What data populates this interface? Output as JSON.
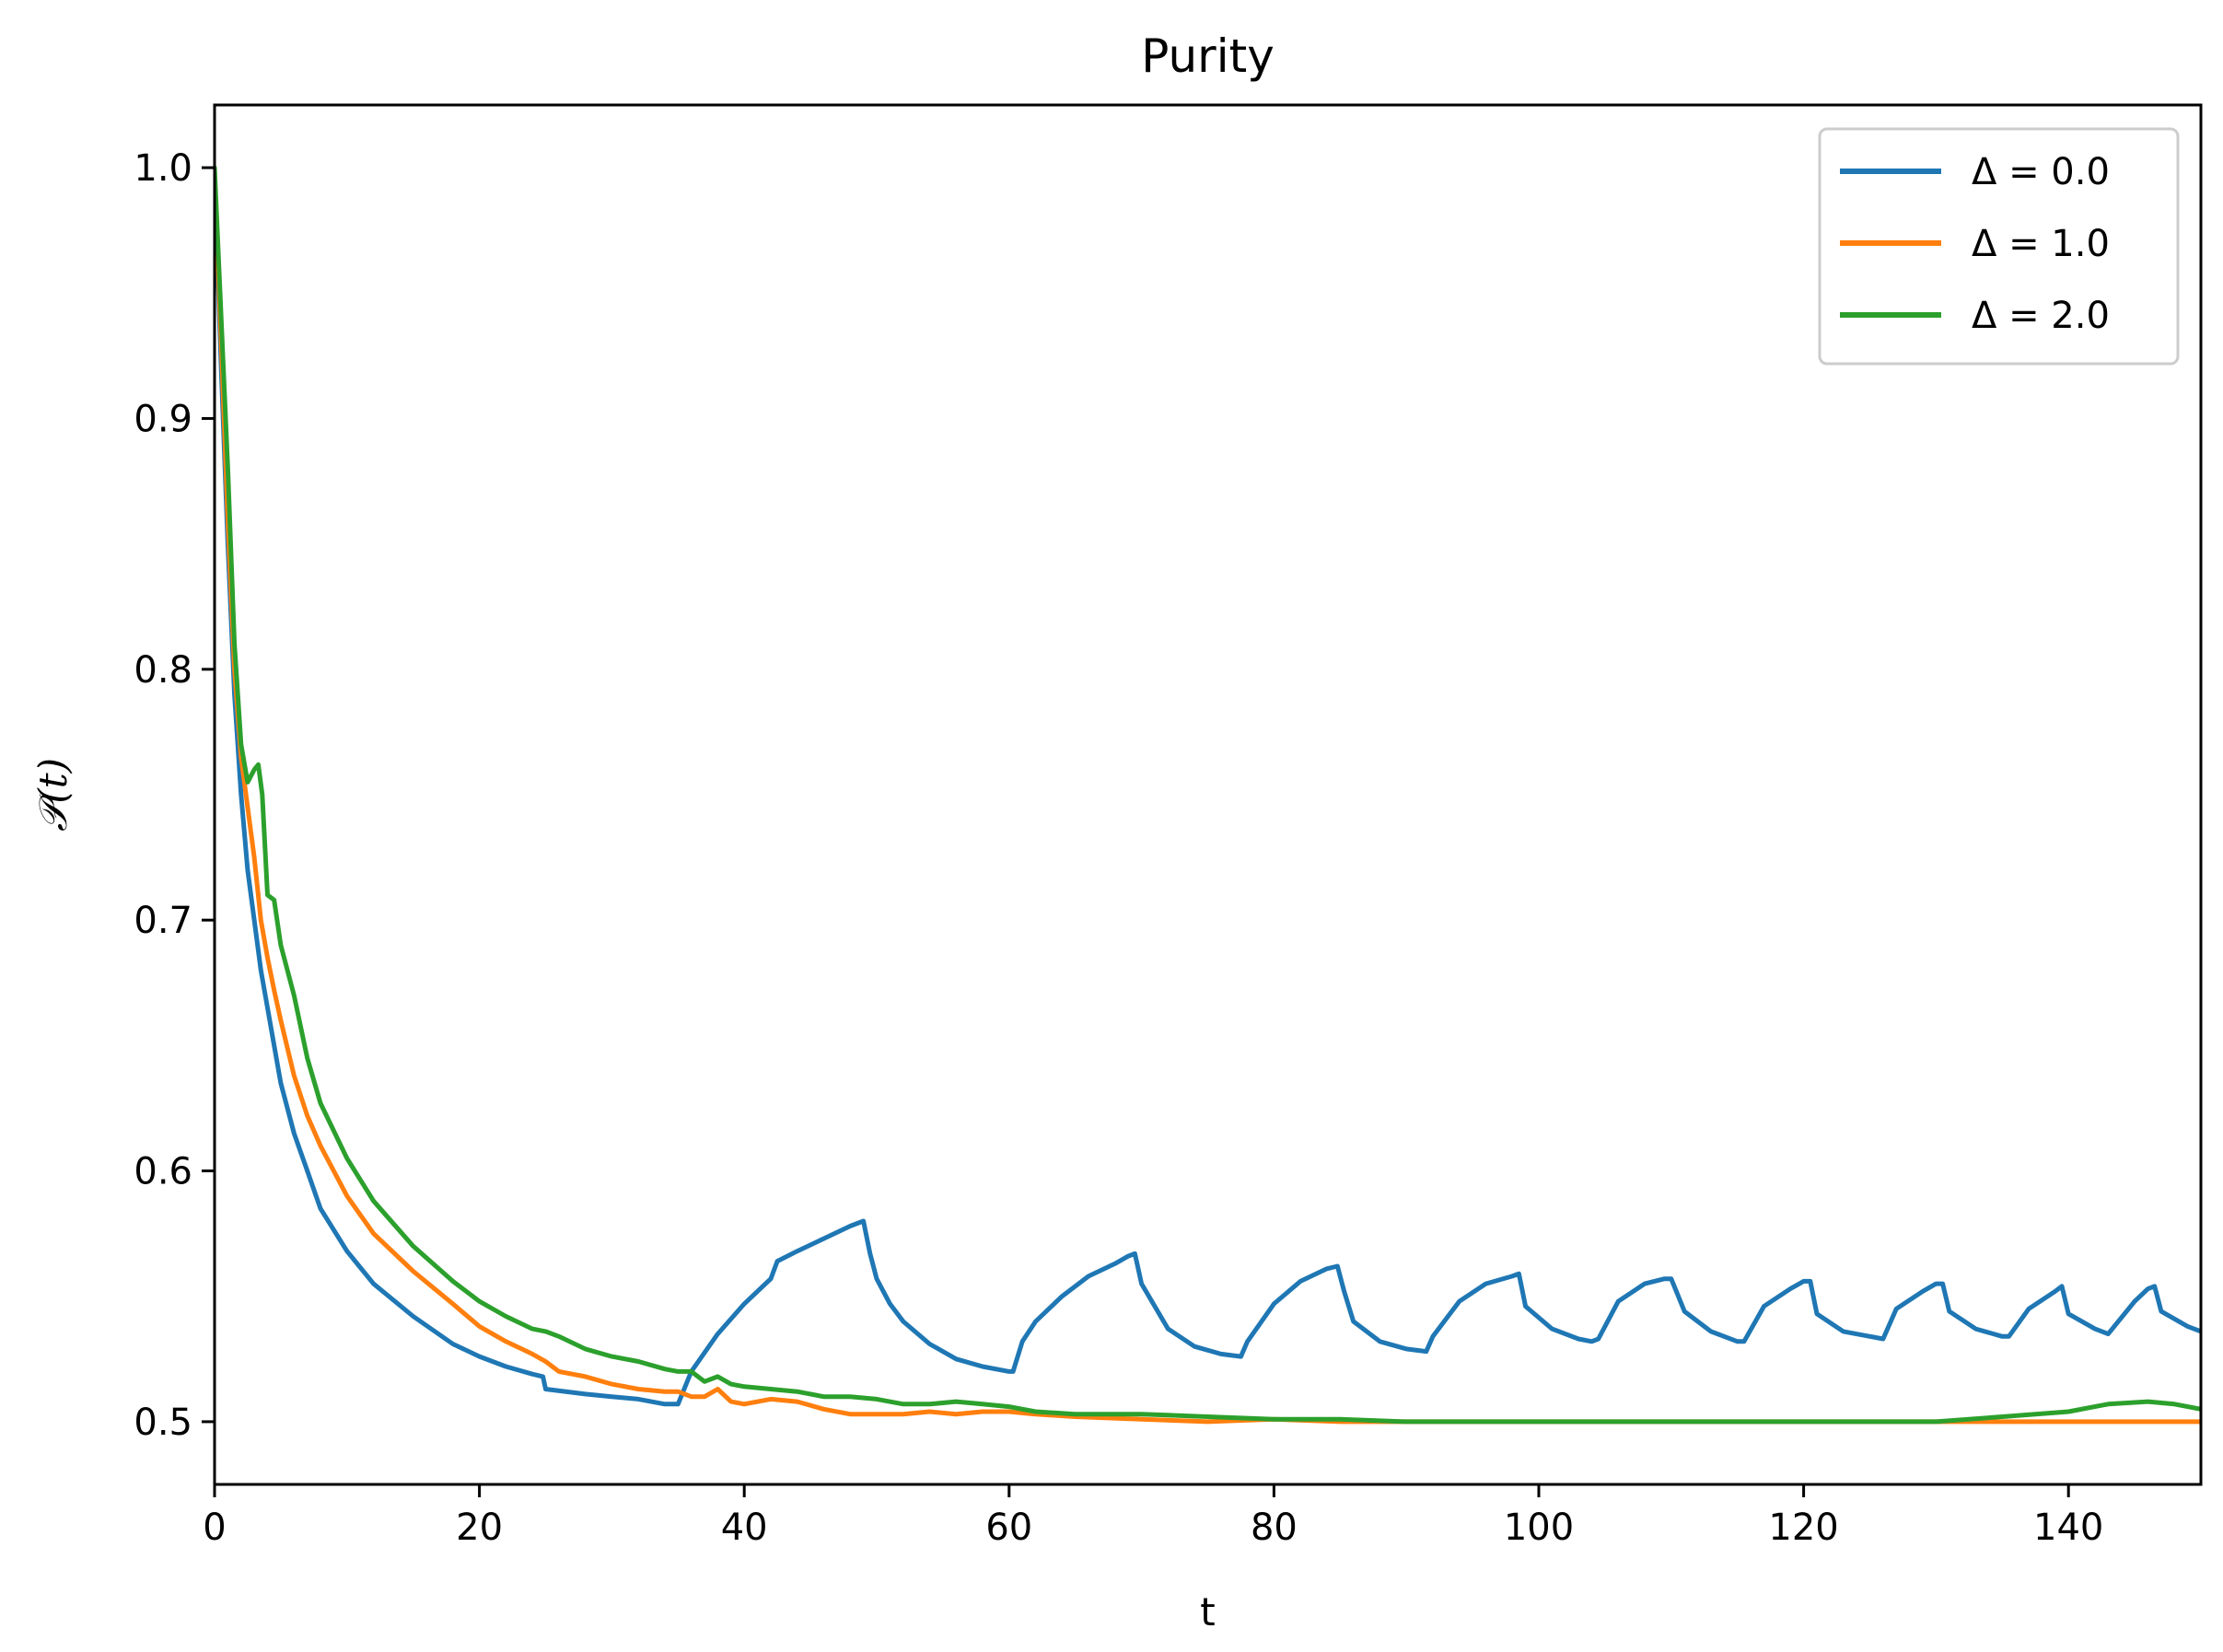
{
  "chart_data": {
    "type": "line",
    "title": "Purity",
    "xlabel": "t",
    "ylabel": "𝒫(t)",
    "xlim": [
      0,
      150
    ],
    "ylim": [
      0.475,
      1.025
    ],
    "xticks": [
      0,
      20,
      40,
      60,
      80,
      100,
      120,
      140
    ],
    "xtick_labels": [
      "0",
      "20",
      "40",
      "60",
      "80",
      "100",
      "120",
      "140"
    ],
    "yticks": [
      0.5,
      0.6,
      0.7,
      0.8,
      0.9,
      1.0
    ],
    "ytick_labels": [
      "0.5",
      "0.6",
      "0.7",
      "0.8",
      "0.9",
      "1.0"
    ],
    "grid": false,
    "legend_position": "top-right",
    "series": [
      {
        "name": "Δ = 0.0",
        "color": "#1f77b4",
        "x": [
          0,
          0.5,
          1,
          1.5,
          2,
          2.5,
          3,
          3.5,
          4,
          4.5,
          5,
          6,
          7,
          8,
          10,
          12,
          15,
          18,
          20,
          22,
          24,
          24.8,
          25,
          28,
          30,
          32,
          34,
          35,
          36,
          38,
          40,
          42,
          42.5,
          44,
          46,
          48,
          49,
          49.5,
          50,
          51,
          52,
          54,
          56,
          58,
          60,
          60.3,
          61,
          62,
          64,
          66,
          68,
          69,
          69.5,
          70,
          72,
          74,
          76,
          77.5,
          78,
          80,
          82,
          84,
          84.8,
          85.3,
          86,
          88,
          90,
          91.5,
          92,
          94,
          96,
          98,
          98.5,
          99,
          101,
          103,
          104,
          104.5,
          106,
          108,
          109.5,
          110,
          111,
          113,
          115,
          115.5,
          117,
          119,
          120,
          120.5,
          121,
          123,
          125,
          126,
          127,
          129,
          130,
          130.5,
          131,
          133,
          135,
          135.5,
          137,
          139,
          139.5,
          140,
          142,
          143,
          145,
          146,
          146.5,
          147,
          149,
          150
        ],
        "y": [
          0.995,
          0.92,
          0.85,
          0.79,
          0.75,
          0.72,
          0.7,
          0.68,
          0.665,
          0.65,
          0.635,
          0.615,
          0.6,
          0.585,
          0.568,
          0.555,
          0.542,
          0.531,
          0.526,
          0.522,
          0.519,
          0.518,
          0.513,
          0.511,
          0.51,
          0.509,
          0.507,
          0.507,
          0.52,
          0.535,
          0.547,
          0.557,
          0.564,
          0.568,
          0.573,
          0.578,
          0.58,
          0.567,
          0.557,
          0.547,
          0.54,
          0.531,
          0.525,
          0.522,
          0.52,
          0.52,
          0.532,
          0.54,
          0.55,
          0.558,
          0.563,
          0.566,
          0.567,
          0.555,
          0.537,
          0.53,
          0.527,
          0.526,
          0.532,
          0.547,
          0.556,
          0.561,
          0.562,
          0.552,
          0.54,
          0.532,
          0.529,
          0.528,
          0.534,
          0.548,
          0.555,
          0.558,
          0.559,
          0.546,
          0.537,
          0.533,
          0.532,
          0.533,
          0.548,
          0.555,
          0.557,
          0.557,
          0.544,
          0.536,
          0.532,
          0.532,
          0.546,
          0.553,
          0.556,
          0.556,
          0.543,
          0.536,
          0.534,
          0.533,
          0.545,
          0.552,
          0.555,
          0.555,
          0.544,
          0.537,
          0.534,
          0.534,
          0.545,
          0.552,
          0.554,
          0.543,
          0.537,
          0.535,
          0.548,
          0.553,
          0.554,
          0.544,
          0.538,
          0.536
        ]
      },
      {
        "name": "Δ = 1.0",
        "color": "#ff7f0e",
        "x": [
          0,
          0.5,
          1,
          1.5,
          2,
          2.5,
          3,
          3.5,
          4,
          4.5,
          5,
          6,
          7,
          8,
          10,
          12,
          15,
          18,
          20,
          22,
          24,
          25,
          26,
          28,
          30,
          32,
          34,
          35,
          36,
          37,
          38,
          39,
          40,
          42,
          44,
          46,
          48,
          50,
          52,
          54,
          56,
          58,
          60,
          62,
          65,
          70,
          75,
          80,
          85,
          90,
          100,
          110,
          120,
          130,
          140,
          150
        ],
        "y": [
          0.995,
          0.93,
          0.86,
          0.8,
          0.765,
          0.745,
          0.725,
          0.7,
          0.685,
          0.672,
          0.66,
          0.638,
          0.622,
          0.61,
          0.59,
          0.575,
          0.56,
          0.547,
          0.538,
          0.532,
          0.527,
          0.524,
          0.52,
          0.518,
          0.515,
          0.513,
          0.512,
          0.512,
          0.51,
          0.51,
          0.513,
          0.508,
          0.507,
          0.509,
          0.508,
          0.505,
          0.503,
          0.503,
          0.503,
          0.504,
          0.503,
          0.504,
          0.504,
          0.503,
          0.502,
          0.501,
          0.5,
          0.501,
          0.5,
          0.5,
          0.5,
          0.5,
          0.5,
          0.5,
          0.5,
          0.5
        ]
      },
      {
        "name": "Δ = 2.0",
        "color": "#2ca02c",
        "x": [
          0,
          0.5,
          1,
          1.5,
          2,
          2.5,
          3,
          3.3,
          3.6,
          4,
          4.5,
          5,
          6,
          7,
          8,
          10,
          12,
          15,
          18,
          20,
          22,
          24,
          25,
          26,
          28,
          30,
          32,
          34,
          35,
          36,
          37,
          38,
          39,
          40,
          42,
          44,
          46,
          48,
          50,
          52,
          54,
          56,
          58,
          60,
          62,
          65,
          70,
          75,
          80,
          85,
          90,
          100,
          110,
          120,
          130,
          135,
          140,
          143,
          146,
          148,
          150
        ],
        "y": [
          1.0,
          0.94,
          0.88,
          0.81,
          0.77,
          0.755,
          0.76,
          0.762,
          0.75,
          0.71,
          0.708,
          0.69,
          0.67,
          0.645,
          0.627,
          0.605,
          0.588,
          0.57,
          0.556,
          0.548,
          0.542,
          0.537,
          0.536,
          0.534,
          0.529,
          0.526,
          0.524,
          0.521,
          0.52,
          0.52,
          0.516,
          0.518,
          0.515,
          0.514,
          0.513,
          0.512,
          0.51,
          0.51,
          0.509,
          0.507,
          0.507,
          0.508,
          0.507,
          0.506,
          0.504,
          0.503,
          0.503,
          0.502,
          0.501,
          0.501,
          0.5,
          0.5,
          0.5,
          0.5,
          0.5,
          0.502,
          0.504,
          0.507,
          0.508,
          0.507,
          0.505
        ]
      }
    ]
  }
}
